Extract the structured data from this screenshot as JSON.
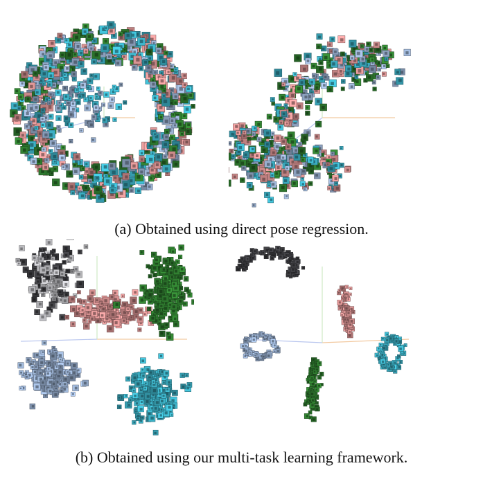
{
  "captions": {
    "a": "(a) Obtained using direct pose regression.",
    "b": "(b) Obtained using our multi-task learning framework."
  },
  "colors": {
    "pink": "#cf8c8c",
    "steel_blue": "#93a9c8",
    "teal": "#3aa9bd",
    "green": "#2f7a2f",
    "dark_gray": "#3e3e42",
    "light_gray": "#b7b7bb",
    "axis_x": "#f2c9a0",
    "axis_y": "#cfe8c4",
    "axis_z": "#b9c6ee"
  },
  "figure": {
    "panels": [
      {
        "id": "a-left",
        "description_key": "direct regression embedding, spherical mixed clusters"
      },
      {
        "id": "a-right",
        "description_key": "direct regression embedding, elongated mixed structure"
      },
      {
        "id": "b-left",
        "description_key": "multi-task embedding, five separated blobs"
      },
      {
        "id": "b-right",
        "description_key": "multi-task embedding, five separated rings"
      }
    ]
  }
}
